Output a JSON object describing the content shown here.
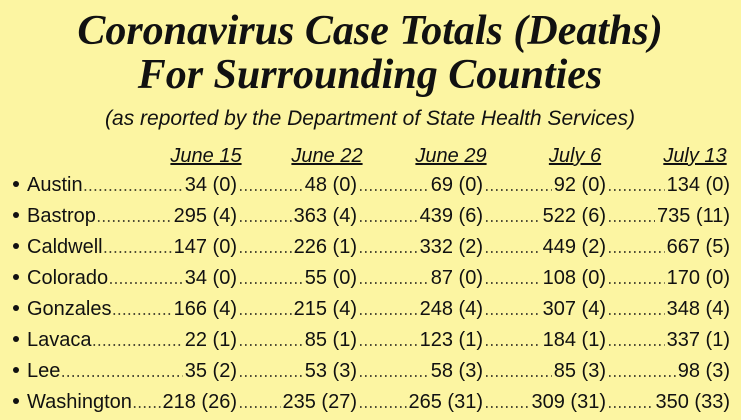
{
  "header": {
    "title": [
      "Coronavirus Case Totals (Deaths)",
      "For Surrounding Counties"
    ],
    "subtitle": "(as reported by the Department of State Health Services)"
  },
  "table": {
    "columns": [
      "June 15",
      "June 22",
      "June 29",
      "July 6",
      "July 13"
    ],
    "rows": [
      {
        "county": "Austin",
        "cells": [
          "34 (0)",
          "48 (0)",
          "69 (0)",
          "92 (0)",
          "134 (0)"
        ]
      },
      {
        "county": "Bastrop",
        "cells": [
          "295 (4)",
          "363 (4)",
          "439 (6)",
          "522 (6)",
          "735 (11)"
        ]
      },
      {
        "county": "Caldwell",
        "cells": [
          "147 (0)",
          "226 (1)",
          "332 (2)",
          "449 (2)",
          "667 (5)"
        ]
      },
      {
        "county": "Colorado",
        "cells": [
          "34 (0)",
          "55 (0)",
          "87 (0)",
          "108 (0)",
          "170 (0)"
        ]
      },
      {
        "county": "Gonzales",
        "cells": [
          "166 (4)",
          "215 (4)",
          "248 (4)",
          "307 (4)",
          "348 (4)"
        ]
      },
      {
        "county": "Lavaca",
        "cells": [
          "22 (1)",
          "85 (1)",
          "123 (1)",
          "184 (1)",
          "337 (1)"
        ]
      },
      {
        "county": "Lee",
        "cells": [
          "35 (2)",
          "53 (3)",
          "58 (3)",
          "85 (3)",
          "98 (3)"
        ]
      },
      {
        "county": "Washington",
        "cells": [
          "218 (26)",
          "235 (27)",
          "265 (31)",
          "309 (31)",
          "350 (33)"
        ]
      }
    ]
  }
}
